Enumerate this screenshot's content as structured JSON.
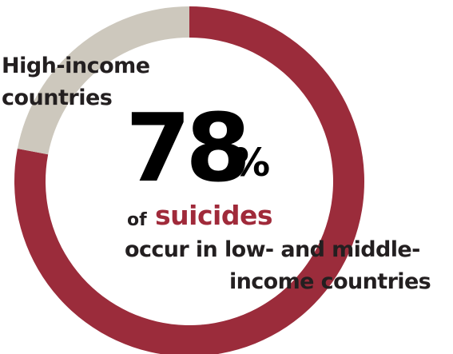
{
  "chart_data": {
    "type": "pie",
    "donut": true,
    "slices": [
      {
        "label": "occur in low- and middle-income countries",
        "value": 78,
        "color": "#9b2c3b"
      },
      {
        "label": "High-income countries",
        "value": 22,
        "color": "#cdc8bd"
      }
    ],
    "start_angle_deg": 0,
    "direction": "clockwise"
  },
  "labels": {
    "high_income_line1": "High-income",
    "high_income_line2": "countries",
    "big_number": "78",
    "percent_sign": "%",
    "of_word": "of",
    "suicides_word": "suicides",
    "occur_line": "occur in low- and middle-",
    "income_line": "income countries"
  }
}
